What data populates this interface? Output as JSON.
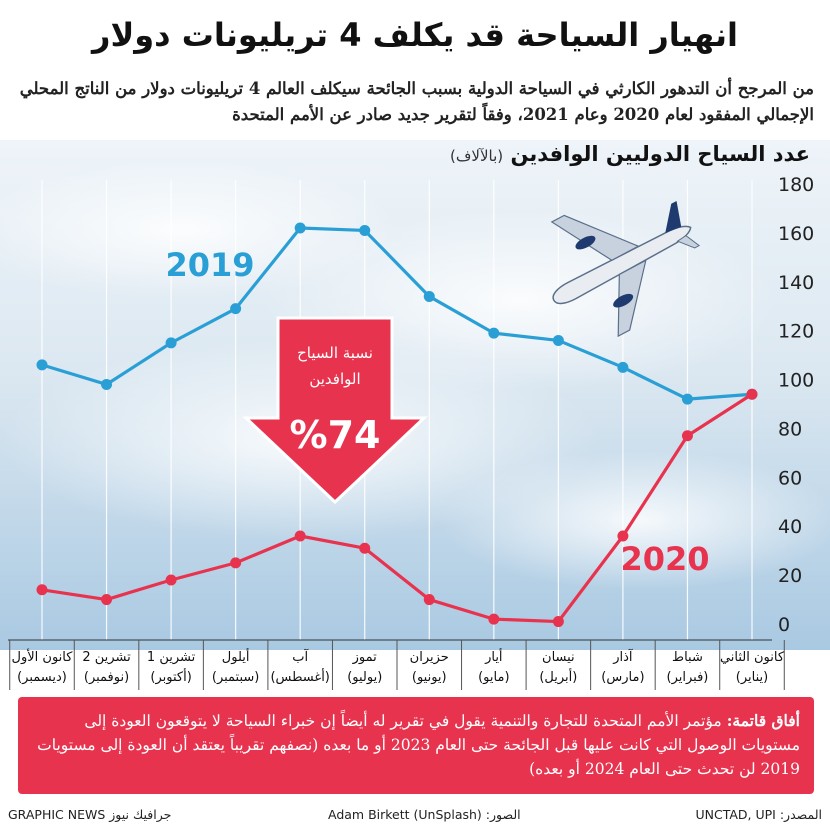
{
  "title": "انهيار السياحة قد يكلف 4 تريليونات دولار",
  "subtitle": "من المرجح أن التدهور الكارثي في السياحة الدولية بسبب الجائحة سيكلف العالم 4 تريليونات دولار من الناتج المحلي الإجمالي المفقود لعام 2020 وعام 2021، وفقاً لتقرير جديد صادر عن الأمم المتحدة",
  "chart_data": {
    "type": "line",
    "ylabel": "عدد السياح الدوليين الوافدين",
    "yunit": "(بالآلاف)",
    "ylim": [
      0,
      180
    ],
    "yticks": [
      0,
      20,
      40,
      60,
      80,
      100,
      120,
      140,
      160,
      180
    ],
    "categories": [
      [
        "كانون الأول",
        "(ديسمبر)"
      ],
      [
        "تشرين 2",
        "(نوفمبر)"
      ],
      [
        "تشرين 1",
        "(أكتوبر)"
      ],
      [
        "أيلول",
        "(سبتمبر)"
      ],
      [
        "آب",
        "(أغسطس)"
      ],
      [
        "تموز",
        "(يوليو)"
      ],
      [
        "حزيران",
        "(يونيو)"
      ],
      [
        "أيار",
        "(مايو)"
      ],
      [
        "نيسان",
        "(أبريل)"
      ],
      [
        "آذار",
        "(مارس)"
      ],
      [
        "شباط",
        "(فبراير)"
      ],
      [
        "كانون الثاني",
        "(يناير)"
      ]
    ],
    "series": [
      {
        "name": "2019",
        "color": "#2a9fd6",
        "values": [
          106,
          98,
          115,
          129,
          162,
          161,
          134,
          119,
          116,
          105,
          92,
          94
        ]
      },
      {
        "name": "2020",
        "color": "#e8334f",
        "values": [
          14,
          10,
          18,
          25,
          36,
          31,
          10,
          2,
          1,
          36,
          77,
          94
        ]
      }
    ],
    "arrow": {
      "label_line1": "نسبة السياح",
      "label_line2": "الوافدين",
      "value": "%74",
      "color": "#e8334f"
    },
    "grid": false
  },
  "callout": {
    "lead": "أفاق قاتمة:",
    "text": "مؤتمر الأمم المتحدة للتجارة والتنمية يقول في تقرير له أيضاً إن خبراء السياحة لا يتوقعون العودة إلى مستويات الوصول التي كانت عليها قبل الجائحة حتى العام 2023 أو ما بعده (نصفهم تقريباً يعتقد أن العودة إلى مستويات 2019 لن تحدث حتى العام 2024 أو بعده)"
  },
  "footer": {
    "source": "المصدر: UNCTAD, UPI",
    "photo": "الصور: Adam Birkett (UnSplash)",
    "credit": "GRAPHIC NEWS جرافيك نيوز"
  },
  "colors": {
    "blue": "#2a9fd6",
    "red": "#e8334f"
  },
  "icons": {
    "plane": "airplane-icon"
  }
}
